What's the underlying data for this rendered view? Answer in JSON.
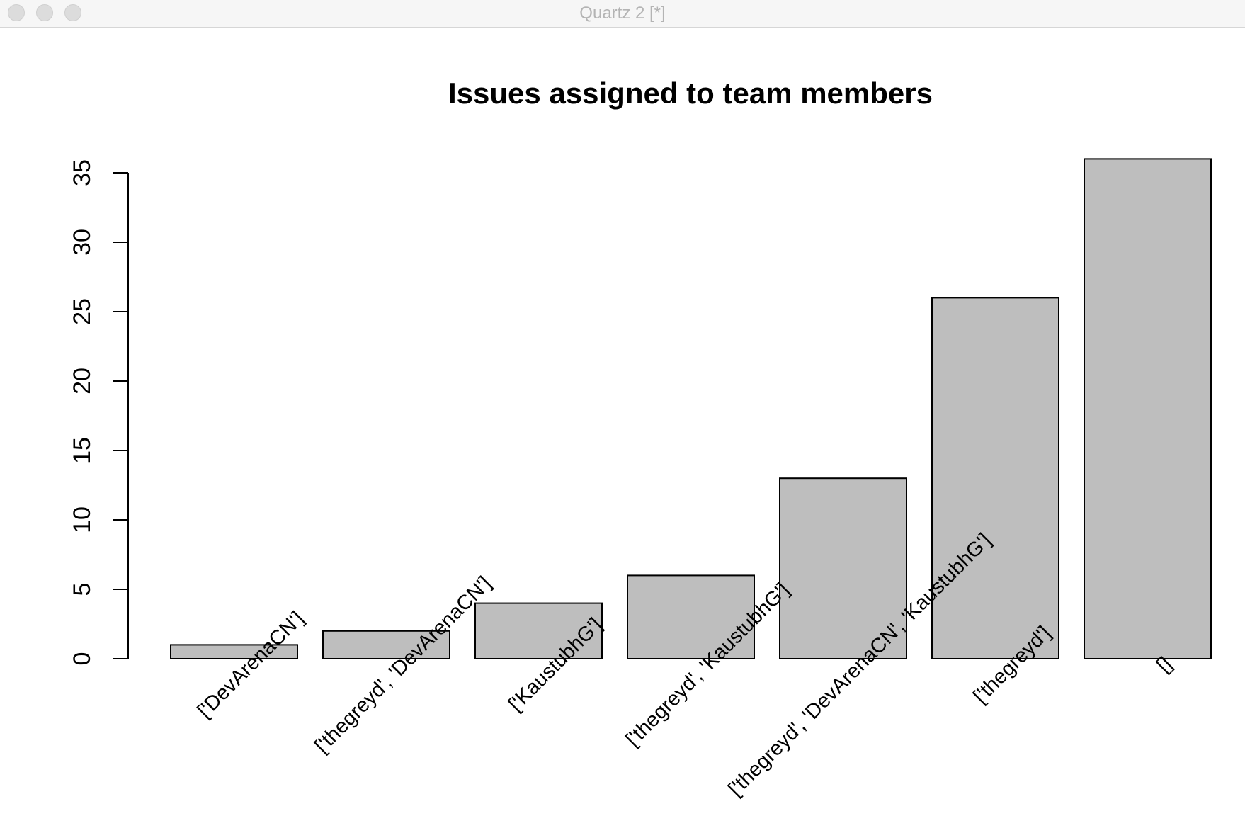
{
  "window": {
    "title": "Quartz 2 [*]"
  },
  "chart_data": {
    "type": "bar",
    "title": "Issues assigned to team members",
    "xlabel": "",
    "ylabel": "",
    "categories": [
      "['DevArenaCN']",
      "['thegreyd', 'DevArenaCN']",
      "['KaustubhG']",
      "['thegreyd', 'KaustubhG']",
      "['thegreyd', 'DevArenaCN', 'KaustubhG']",
      "['thegreyd']",
      "[]"
    ],
    "values": [
      1,
      2,
      4,
      6,
      13,
      26,
      36
    ],
    "ylim": [
      0,
      35
    ],
    "yticks": [
      "0",
      "5",
      "10",
      "15",
      "20",
      "25",
      "30",
      "35"
    ],
    "bar_color": "#bebebe",
    "edge_color": "#000000",
    "grid": false,
    "legend": "none"
  }
}
